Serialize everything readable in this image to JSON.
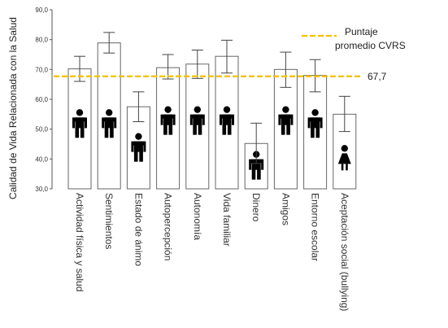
{
  "chart_data": {
    "type": "bar",
    "ylabel": "Calidad de Vida Relacionada con la Salud",
    "ylim": [
      30,
      90
    ],
    "yticks": [
      "30,0",
      "40,0",
      "50,0",
      "60,0",
      "70,0",
      "80,0",
      "90,0"
    ],
    "categories": [
      "Actividad física y salud",
      "Sentimientos",
      "Estado de ánimo",
      "Autopercepción",
      "Autonomía",
      "Vida familiar",
      "Dinero",
      "Amigos",
      "Entorno escolar",
      "Aceptación social (bullying)"
    ],
    "values": [
      70.2,
      78.9,
      57.5,
      70.6,
      71.8,
      74.4,
      45.2,
      70.0,
      68.0,
      55.0
    ],
    "error_low": [
      66.0,
      75.5,
      52.5,
      66.8,
      67.0,
      68.8,
      38.5,
      64.0,
      62.5,
      49.2
    ],
    "error_high": [
      74.4,
      82.4,
      62.5,
      75.0,
      76.5,
      79.8,
      52.0,
      75.8,
      73.3,
      61.0
    ],
    "icons": [
      "male",
      "male",
      "male",
      "male",
      "male",
      "male",
      "male",
      "male",
      "male",
      "female"
    ],
    "icon_level": [
      52,
      52,
      44,
      53,
      53,
      53,
      38,
      53,
      52,
      40
    ],
    "reference_line": {
      "value": 67.7,
      "label": "67,7",
      "color": "#f5c000"
    },
    "legend": {
      "line1": "Puntaje",
      "line2": "promedio CVRS",
      "color": "#f5c000",
      "position": "top-right"
    },
    "grid": false
  }
}
